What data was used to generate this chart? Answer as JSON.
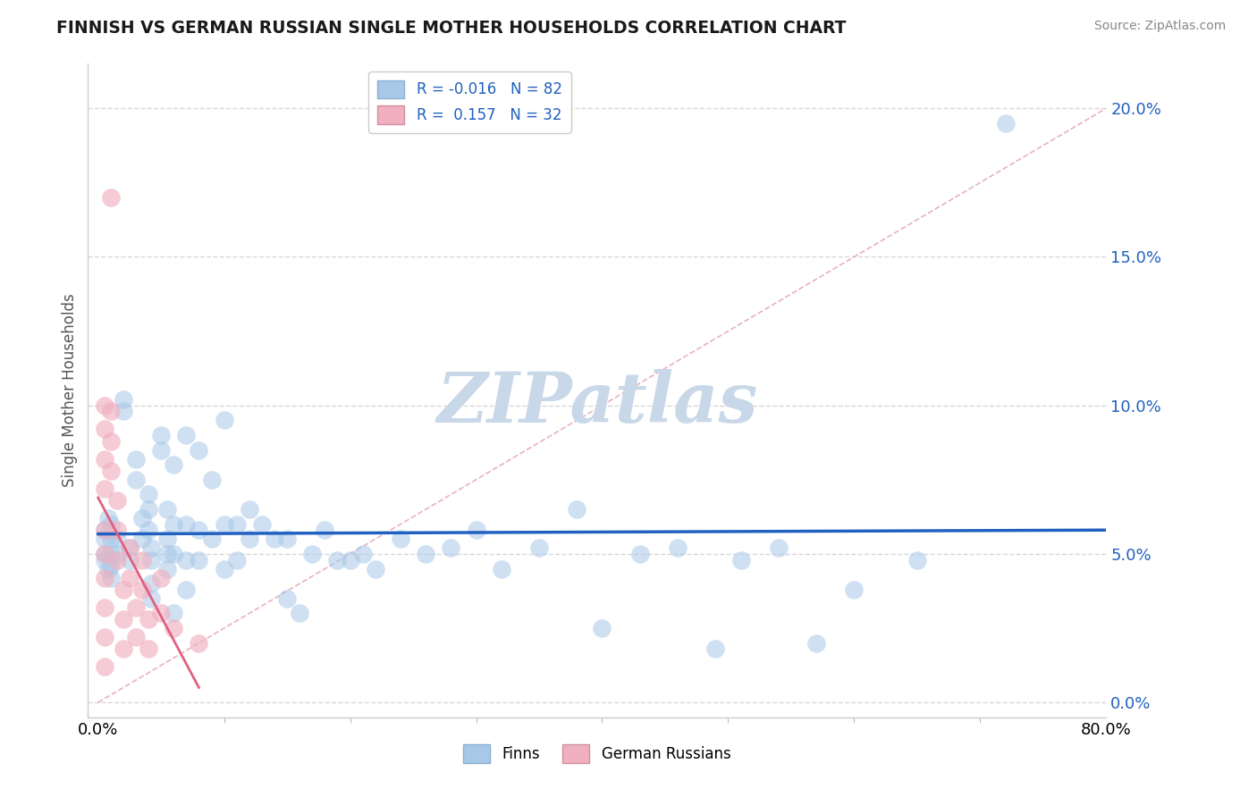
{
  "title": "FINNISH VS GERMAN RUSSIAN SINGLE MOTHER HOUSEHOLDS CORRELATION CHART",
  "source": "Source: ZipAtlas.com",
  "ylabel": "Single Mother Households",
  "xlim": [
    0.0,
    0.8
  ],
  "ylim": [
    -0.005,
    0.215
  ],
  "ytick_vals": [
    0.0,
    0.05,
    0.1,
    0.15,
    0.2
  ],
  "ytick_labels": [
    "0.0%",
    "5.0%",
    "10.0%",
    "15.0%",
    "20.0%"
  ],
  "xtick_vals": [
    0.0,
    0.8
  ],
  "xtick_labels": [
    "0.0%",
    "80.0%"
  ],
  "blue_color": "#a8c8e8",
  "pink_color": "#f0b0c0",
  "line_blue": "#2060c0",
  "line_pink": "#e06080",
  "diagonal_color": "#e0a0b0",
  "watermark_color": "#c8d8e8",
  "grid_color": "#d8d8d8",
  "background_color": "#ffffff",
  "legend1_label1": "R = -0.016",
  "legend1_n1": "N = 82",
  "legend1_label2": "R =  0.157",
  "legend1_n2": "N = 32",
  "legend2_label1": "Finns",
  "legend2_label2": "German Russians",
  "finns_data": [
    [
      0.005,
      0.055
    ],
    [
      0.005,
      0.05
    ],
    [
      0.005,
      0.058
    ],
    [
      0.005,
      0.048
    ],
    [
      0.008,
      0.062
    ],
    [
      0.008,
      0.045
    ],
    [
      0.01,
      0.06
    ],
    [
      0.01,
      0.055
    ],
    [
      0.01,
      0.05
    ],
    [
      0.01,
      0.046
    ],
    [
      0.01,
      0.042
    ],
    [
      0.015,
      0.055
    ],
    [
      0.015,
      0.05
    ],
    [
      0.02,
      0.102
    ],
    [
      0.02,
      0.098
    ],
    [
      0.025,
      0.052
    ],
    [
      0.025,
      0.048
    ],
    [
      0.03,
      0.082
    ],
    [
      0.03,
      0.075
    ],
    [
      0.035,
      0.062
    ],
    [
      0.035,
      0.055
    ],
    [
      0.04,
      0.07
    ],
    [
      0.04,
      0.065
    ],
    [
      0.04,
      0.058
    ],
    [
      0.042,
      0.052
    ],
    [
      0.042,
      0.048
    ],
    [
      0.042,
      0.04
    ],
    [
      0.042,
      0.035
    ],
    [
      0.05,
      0.09
    ],
    [
      0.05,
      0.085
    ],
    [
      0.055,
      0.065
    ],
    [
      0.055,
      0.055
    ],
    [
      0.055,
      0.05
    ],
    [
      0.055,
      0.045
    ],
    [
      0.06,
      0.08
    ],
    [
      0.06,
      0.06
    ],
    [
      0.06,
      0.05
    ],
    [
      0.06,
      0.03
    ],
    [
      0.07,
      0.09
    ],
    [
      0.07,
      0.06
    ],
    [
      0.07,
      0.048
    ],
    [
      0.07,
      0.038
    ],
    [
      0.08,
      0.085
    ],
    [
      0.08,
      0.058
    ],
    [
      0.08,
      0.048
    ],
    [
      0.09,
      0.075
    ],
    [
      0.09,
      0.055
    ],
    [
      0.1,
      0.095
    ],
    [
      0.1,
      0.06
    ],
    [
      0.1,
      0.045
    ],
    [
      0.11,
      0.06
    ],
    [
      0.11,
      0.048
    ],
    [
      0.12,
      0.065
    ],
    [
      0.12,
      0.055
    ],
    [
      0.13,
      0.06
    ],
    [
      0.14,
      0.055
    ],
    [
      0.15,
      0.055
    ],
    [
      0.15,
      0.035
    ],
    [
      0.16,
      0.03
    ],
    [
      0.17,
      0.05
    ],
    [
      0.18,
      0.058
    ],
    [
      0.19,
      0.048
    ],
    [
      0.2,
      0.048
    ],
    [
      0.21,
      0.05
    ],
    [
      0.22,
      0.045
    ],
    [
      0.24,
      0.055
    ],
    [
      0.26,
      0.05
    ],
    [
      0.28,
      0.052
    ],
    [
      0.3,
      0.058
    ],
    [
      0.32,
      0.045
    ],
    [
      0.35,
      0.052
    ],
    [
      0.38,
      0.065
    ],
    [
      0.4,
      0.025
    ],
    [
      0.43,
      0.05
    ],
    [
      0.46,
      0.052
    ],
    [
      0.49,
      0.018
    ],
    [
      0.51,
      0.048
    ],
    [
      0.54,
      0.052
    ],
    [
      0.57,
      0.02
    ],
    [
      0.6,
      0.038
    ],
    [
      0.65,
      0.048
    ],
    [
      0.72,
      0.195
    ]
  ],
  "german_russians_data": [
    [
      0.005,
      0.1
    ],
    [
      0.005,
      0.092
    ],
    [
      0.005,
      0.082
    ],
    [
      0.005,
      0.072
    ],
    [
      0.005,
      0.058
    ],
    [
      0.005,
      0.05
    ],
    [
      0.005,
      0.042
    ],
    [
      0.005,
      0.032
    ],
    [
      0.005,
      0.022
    ],
    [
      0.005,
      0.012
    ],
    [
      0.01,
      0.17
    ],
    [
      0.01,
      0.098
    ],
    [
      0.01,
      0.088
    ],
    [
      0.01,
      0.078
    ],
    [
      0.015,
      0.068
    ],
    [
      0.015,
      0.058
    ],
    [
      0.015,
      0.048
    ],
    [
      0.02,
      0.038
    ],
    [
      0.02,
      0.028
    ],
    [
      0.02,
      0.018
    ],
    [
      0.025,
      0.052
    ],
    [
      0.025,
      0.042
    ],
    [
      0.03,
      0.032
    ],
    [
      0.03,
      0.022
    ],
    [
      0.035,
      0.048
    ],
    [
      0.035,
      0.038
    ],
    [
      0.04,
      0.028
    ],
    [
      0.04,
      0.018
    ],
    [
      0.05,
      0.042
    ],
    [
      0.05,
      0.03
    ],
    [
      0.06,
      0.025
    ],
    [
      0.08,
      0.02
    ]
  ]
}
